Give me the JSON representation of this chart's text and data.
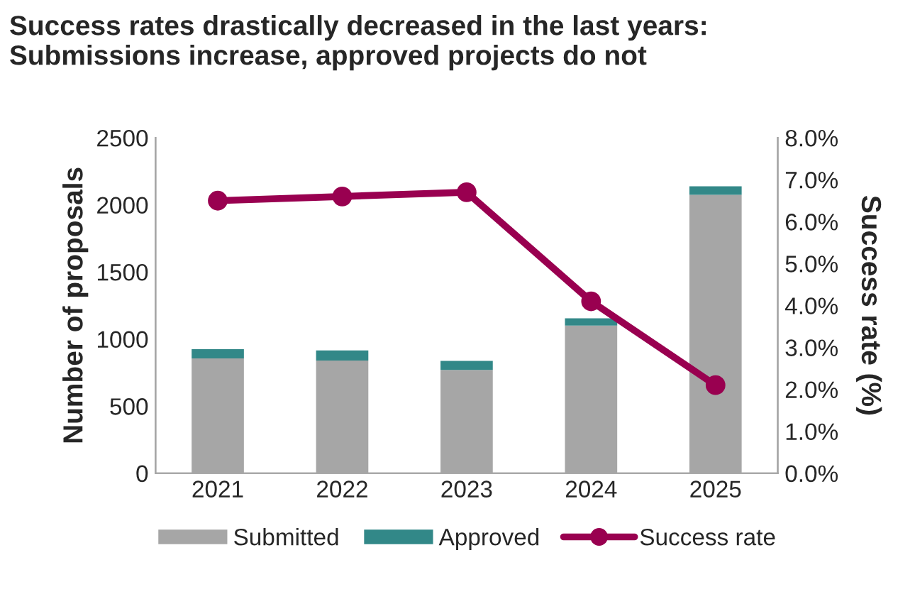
{
  "chart_data": {
    "type": "bar",
    "stacked": true,
    "title": "Success rates drastically decreased in the last years:\nSubmissions increase, approved projects do not",
    "ylabel": "Number of proposals",
    "y2label": "Success rate (%)",
    "categories": [
      "2021",
      "2022",
      "2023",
      "2024",
      "2025"
    ],
    "series": [
      {
        "name": "Submitted",
        "color": "#a6a6a6",
        "values": [
          855,
          840,
          770,
          1100,
          2075
        ]
      },
      {
        "name": "Approved",
        "color": "#328888",
        "values": [
          70,
          75,
          67,
          55,
          63
        ]
      },
      {
        "name": "Success rate",
        "type": "line",
        "axis": "y2",
        "color": "#990050",
        "values": [
          6.5,
          6.6,
          6.7,
          4.1,
          2.1
        ]
      }
    ],
    "ylim": [
      0,
      2500
    ],
    "yticks": [
      0,
      500,
      1000,
      1500,
      2000,
      2500
    ],
    "y2lim": [
      0,
      8
    ],
    "y2ticks": [
      {
        "value": 0,
        "label": "0.0%"
      },
      {
        "value": 1,
        "label": "1.0%"
      },
      {
        "value": 2,
        "label": "2.0%"
      },
      {
        "value": 3,
        "label": "3.0%"
      },
      {
        "value": 4,
        "label": "4.0%"
      },
      {
        "value": 5,
        "label": "5.0%"
      },
      {
        "value": 6,
        "label": "6.0%"
      },
      {
        "value": 7,
        "label": "7.0%"
      },
      {
        "value": 8,
        "label": "8.0%"
      }
    ],
    "grid": false,
    "legend": "bottom",
    "marker": "circle",
    "line_style": "solid"
  }
}
